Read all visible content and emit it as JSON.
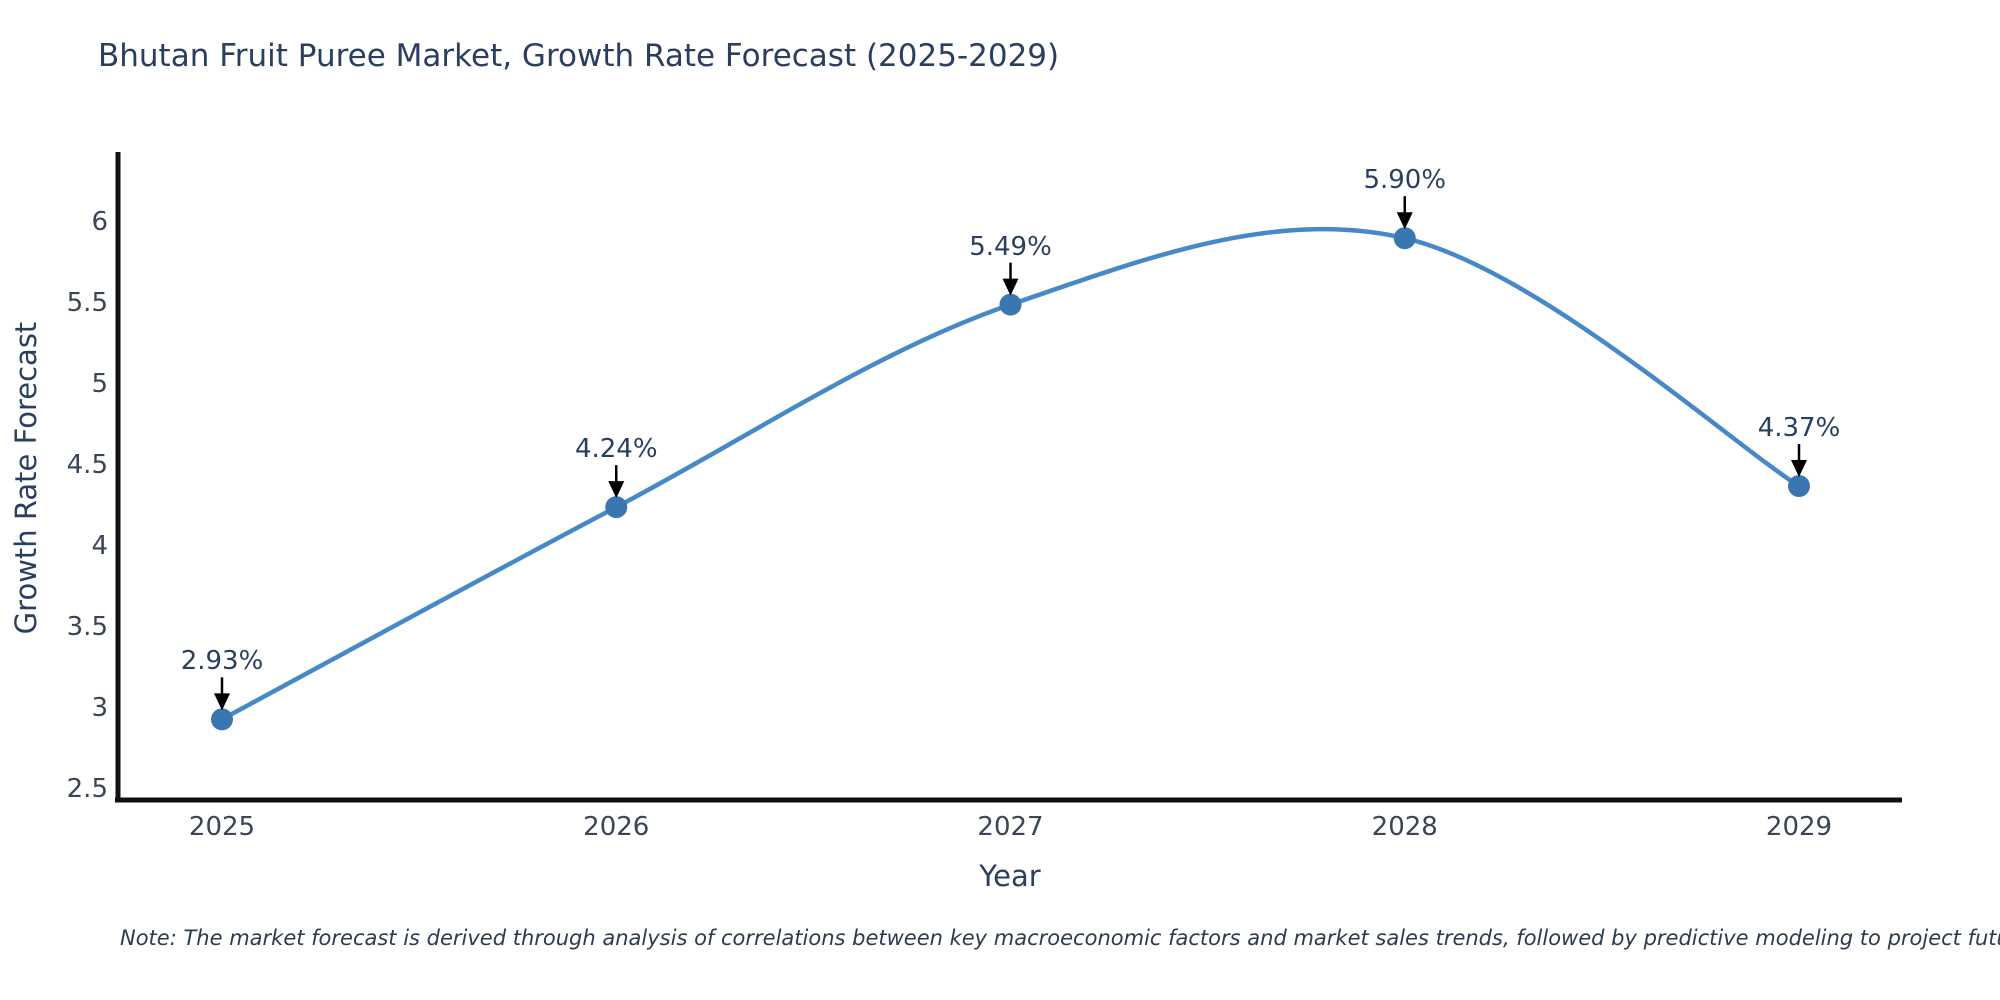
{
  "title": "Bhutan Fruit Puree Market, Growth Rate Forecast (2025-2029)",
  "note": "Note: The market forecast is derived through analysis of correlations between key macroeconomic factors and market sales trends, followed by predictive modeling to project future sales",
  "chart_data": {
    "type": "line",
    "title": "Bhutan Fruit Puree Market, Growth Rate Forecast (2025-2029)",
    "xlabel": "Year",
    "ylabel": "Growth Rate Forecast",
    "x": [
      2025,
      2026,
      2027,
      2028,
      2029
    ],
    "values": [
      2.93,
      4.24,
      5.49,
      5.9,
      4.37
    ],
    "point_labels": [
      "2.93%",
      "4.24%",
      "5.49%",
      "5.90%",
      "4.37%"
    ],
    "xtick_labels": [
      "2025",
      "2026",
      "2027",
      "2028",
      "2029"
    ],
    "ytick_labels": [
      "2.5",
      "3",
      "3.5",
      "4",
      "4.5",
      "5",
      "5.5",
      "6"
    ],
    "ylim": [
      2.5,
      6.4
    ],
    "grid": false,
    "line_style": "spline",
    "marker": "circle",
    "annotation_arrows": true,
    "legend": "none",
    "colors": {
      "line": "#4788c7",
      "marker": "#3a77b0",
      "axis": "#111111",
      "title_text": "#2a3f5f",
      "tick_text": "#3a4556",
      "arrow": "#000000",
      "background": "#ffffff"
    }
  }
}
